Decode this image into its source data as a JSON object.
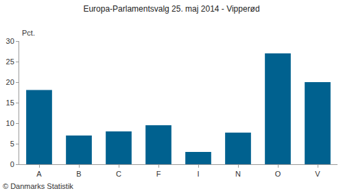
{
  "chart_data": {
    "type": "bar",
    "title": "Europa-Parlamentsvalg 25. maj 2014 - Vipperød",
    "ylabel": "Pct.",
    "source": "© Danmarks Statistik",
    "categories": [
      "A",
      "B",
      "C",
      "F",
      "I",
      "N",
      "O",
      "V"
    ],
    "values": [
      18.1,
      7.0,
      8.0,
      9.5,
      3.0,
      7.7,
      27.0,
      20.0
    ],
    "color": "#00618f",
    "ylim": [
      0,
      30
    ],
    "yticks": [
      0,
      5,
      10,
      15,
      20,
      25,
      30
    ],
    "grid": false
  }
}
